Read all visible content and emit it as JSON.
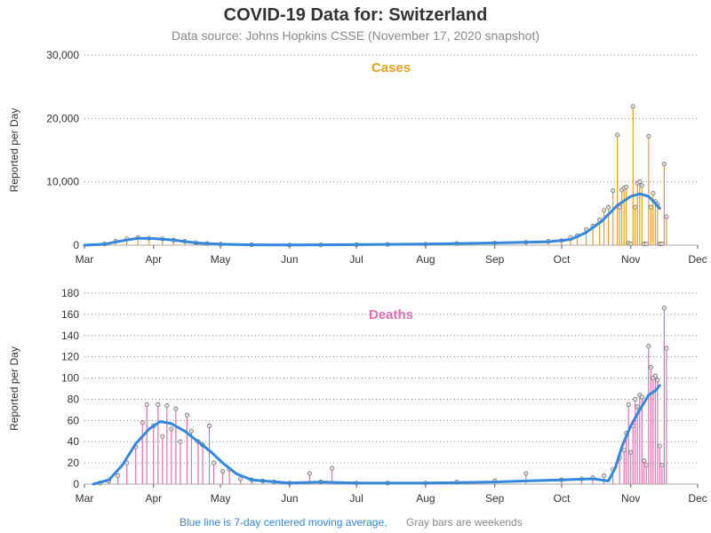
{
  "title": "COVID-19 Data for: Switzerland",
  "subtitle": "Data source: Johns Hopkins CSSE (November 17, 2020 snapshot)",
  "footnote": {
    "blue_text": "Blue line is 7-day centered moving average,",
    "gray_text": "Gray bars are weekends"
  },
  "colors": {
    "cases": "#e8a020",
    "deaths": "#e070b0",
    "average": "#3388dd",
    "weekend": "#aaaaaa",
    "grid": "#888888"
  },
  "chart_data": [
    {
      "type": "bar",
      "title": "Cases",
      "ylabel": "Reported per Day",
      "ylim": [
        0,
        30000
      ],
      "yticks": [
        "0",
        "10,000",
        "20,000",
        "30,000"
      ],
      "ytick_values": [
        0,
        10000,
        20000,
        30000
      ],
      "xtick_labels": [
        "Mar",
        "Apr",
        "May",
        "Jun",
        "Jul",
        "Aug",
        "Sep",
        "Oct",
        "Nov",
        "Dec"
      ],
      "xtick_dates": [
        "2020-03-01",
        "2020-04-01",
        "2020-05-01",
        "2020-06-01",
        "2020-07-01",
        "2020-08-01",
        "2020-09-01",
        "2020-10-01",
        "2020-11-01",
        "2020-12-01"
      ],
      "grid": "horizontal dotted",
      "series": [
        {
          "kind": "daily",
          "points": [
            [
              "2020-03-10",
              200
            ],
            [
              "2020-03-15",
              600
            ],
            [
              "2020-03-20",
              1000
            ],
            [
              "2020-03-25",
              1200
            ],
            [
              "2020-03-30",
              1100
            ],
            [
              "2020-04-05",
              1000
            ],
            [
              "2020-04-10",
              800
            ],
            [
              "2020-04-15",
              600
            ],
            [
              "2020-04-20",
              400
            ],
            [
              "2020-04-25",
              250
            ],
            [
              "2020-05-01",
              150
            ],
            [
              "2020-05-15",
              60
            ],
            [
              "2020-06-01",
              30
            ],
            [
              "2020-06-15",
              25
            ],
            [
              "2020-07-01",
              80
            ],
            [
              "2020-07-15",
              120
            ],
            [
              "2020-08-01",
              150
            ],
            [
              "2020-08-15",
              250
            ],
            [
              "2020-09-01",
              350
            ],
            [
              "2020-09-15",
              450
            ],
            [
              "2020-09-25",
              600
            ],
            [
              "2020-10-01",
              700
            ],
            [
              "2020-10-05",
              1200
            ],
            [
              "2020-10-08",
              1500
            ],
            [
              "2020-10-12",
              2500
            ],
            [
              "2020-10-15",
              3000
            ],
            [
              "2020-10-18",
              4000
            ],
            [
              "2020-10-20",
              5500
            ],
            [
              "2020-10-22",
              6000
            ],
            [
              "2020-10-24",
              8600
            ],
            [
              "2020-10-26",
              17400
            ],
            [
              "2020-10-27",
              6000
            ],
            [
              "2020-10-28",
              8700
            ],
            [
              "2020-10-29",
              9000
            ],
            [
              "2020-10-30",
              9200
            ],
            [
              "2020-10-31",
              300
            ],
            [
              "2020-11-01",
              200
            ],
            [
              "2020-11-02",
              21900
            ],
            [
              "2020-11-03",
              6000
            ],
            [
              "2020-11-04",
              9800
            ],
            [
              "2020-11-05",
              10000
            ],
            [
              "2020-11-06",
              9400
            ],
            [
              "2020-11-07",
              200
            ],
            [
              "2020-11-08",
              200
            ],
            [
              "2020-11-09",
              17200
            ],
            [
              "2020-11-10",
              6000
            ],
            [
              "2020-11-11",
              8200
            ],
            [
              "2020-11-12",
              6900
            ],
            [
              "2020-11-13",
              6500
            ],
            [
              "2020-11-14",
              200
            ],
            [
              "2020-11-15",
              200
            ],
            [
              "2020-11-16",
              12800
            ],
            [
              "2020-11-17",
              4500
            ]
          ]
        },
        {
          "kind": "7-day centered moving average",
          "points": [
            [
              "2020-03-01",
              0
            ],
            [
              "2020-03-10",
              150
            ],
            [
              "2020-03-18",
              700
            ],
            [
              "2020-03-25",
              1100
            ],
            [
              "2020-04-01",
              1050
            ],
            [
              "2020-04-10",
              800
            ],
            [
              "2020-04-20",
              350
            ],
            [
              "2020-05-01",
              150
            ],
            [
              "2020-05-15",
              50
            ],
            [
              "2020-06-01",
              25
            ],
            [
              "2020-07-01",
              80
            ],
            [
              "2020-08-01",
              180
            ],
            [
              "2020-09-01",
              350
            ],
            [
              "2020-09-25",
              550
            ],
            [
              "2020-10-05",
              900
            ],
            [
              "2020-10-12",
              2000
            ],
            [
              "2020-10-19",
              3800
            ],
            [
              "2020-10-26",
              6300
            ],
            [
              "2020-11-01",
              7700
            ],
            [
              "2020-11-05",
              8100
            ],
            [
              "2020-11-09",
              7700
            ],
            [
              "2020-11-12",
              6600
            ],
            [
              "2020-11-14",
              5800
            ]
          ]
        }
      ]
    },
    {
      "type": "bar",
      "title": "Deaths",
      "ylabel": "Reported per Day",
      "ylim": [
        0,
        180
      ],
      "yticks": [
        "0",
        "20",
        "40",
        "60",
        "80",
        "100",
        "120",
        "140",
        "160",
        "180"
      ],
      "ytick_values": [
        0,
        20,
        40,
        60,
        80,
        100,
        120,
        140,
        160,
        180
      ],
      "xtick_labels": [
        "Mar",
        "Apr",
        "May",
        "Jun",
        "Jul",
        "Aug",
        "Sep",
        "Oct",
        "Nov",
        "Dec"
      ],
      "xtick_dates": [
        "2020-03-01",
        "2020-04-01",
        "2020-05-01",
        "2020-06-01",
        "2020-07-01",
        "2020-08-01",
        "2020-09-01",
        "2020-10-01",
        "2020-11-01",
        "2020-12-01"
      ],
      "grid": "horizontal dotted",
      "series": [
        {
          "kind": "daily",
          "points": [
            [
              "2020-03-08",
              1
            ],
            [
              "2020-03-12",
              3
            ],
            [
              "2020-03-16",
              8
            ],
            [
              "2020-03-20",
              20
            ],
            [
              "2020-03-24",
              35
            ],
            [
              "2020-03-27",
              58
            ],
            [
              "2020-03-29",
              75
            ],
            [
              "2020-04-01",
              55
            ],
            [
              "2020-04-03",
              75
            ],
            [
              "2020-04-05",
              45
            ],
            [
              "2020-04-07",
              74
            ],
            [
              "2020-04-09",
              52
            ],
            [
              "2020-04-11",
              71
            ],
            [
              "2020-04-13",
              40
            ],
            [
              "2020-04-16",
              65
            ],
            [
              "2020-04-18",
              50
            ],
            [
              "2020-04-21",
              40
            ],
            [
              "2020-04-23",
              37
            ],
            [
              "2020-04-26",
              55
            ],
            [
              "2020-04-28",
              20
            ],
            [
              "2020-05-02",
              12
            ],
            [
              "2020-05-05",
              14
            ],
            [
              "2020-05-10",
              5
            ],
            [
              "2020-05-15",
              4
            ],
            [
              "2020-05-20",
              3
            ],
            [
              "2020-05-25",
              2
            ],
            [
              "2020-06-01",
              1
            ],
            [
              "2020-06-10",
              10
            ],
            [
              "2020-06-15",
              2
            ],
            [
              "2020-06-20",
              15
            ],
            [
              "2020-07-01",
              1
            ],
            [
              "2020-07-15",
              1
            ],
            [
              "2020-08-01",
              1
            ],
            [
              "2020-08-15",
              2
            ],
            [
              "2020-09-01",
              3
            ],
            [
              "2020-09-15",
              10
            ],
            [
              "2020-10-01",
              4
            ],
            [
              "2020-10-10",
              5
            ],
            [
              "2020-10-15",
              6
            ],
            [
              "2020-10-20",
              8
            ],
            [
              "2020-10-24",
              14
            ],
            [
              "2020-10-27",
              25
            ],
            [
              "2020-10-29",
              32
            ],
            [
              "2020-10-30",
              48
            ],
            [
              "2020-10-31",
              75
            ],
            [
              "2020-11-01",
              30
            ],
            [
              "2020-11-02",
              55
            ],
            [
              "2020-11-03",
              80
            ],
            [
              "2020-11-04",
              73
            ],
            [
              "2020-11-05",
              84
            ],
            [
              "2020-11-06",
              82
            ],
            [
              "2020-11-07",
              22
            ],
            [
              "2020-11-08",
              18
            ],
            [
              "2020-11-09",
              130
            ],
            [
              "2020-11-10",
              110
            ],
            [
              "2020-11-11",
              100
            ],
            [
              "2020-11-12",
              102
            ],
            [
              "2020-11-13",
              98
            ],
            [
              "2020-11-14",
              36
            ],
            [
              "2020-11-15",
              18
            ],
            [
              "2020-11-16",
              166
            ],
            [
              "2020-11-17",
              128
            ]
          ]
        },
        {
          "kind": "7-day centered moving average",
          "points": [
            [
              "2020-03-05",
              0
            ],
            [
              "2020-03-12",
              4
            ],
            [
              "2020-03-18",
              18
            ],
            [
              "2020-03-24",
              38
            ],
            [
              "2020-03-30",
              52
            ],
            [
              "2020-04-04",
              59
            ],
            [
              "2020-04-09",
              57
            ],
            [
              "2020-04-15",
              50
            ],
            [
              "2020-04-21",
              40
            ],
            [
              "2020-04-27",
              30
            ],
            [
              "2020-05-02",
              20
            ],
            [
              "2020-05-08",
              10
            ],
            [
              "2020-05-15",
              4
            ],
            [
              "2020-06-01",
              1
            ],
            [
              "2020-06-15",
              2
            ],
            [
              "2020-07-01",
              1
            ],
            [
              "2020-08-01",
              1
            ],
            [
              "2020-09-01",
              2
            ],
            [
              "2020-09-15",
              3
            ],
            [
              "2020-10-01",
              4
            ],
            [
              "2020-10-15",
              5
            ],
            [
              "2020-10-22",
              3
            ],
            [
              "2020-10-25",
              15
            ],
            [
              "2020-10-28",
              35
            ],
            [
              "2020-11-01",
              55
            ],
            [
              "2020-11-05",
              70
            ],
            [
              "2020-11-09",
              84
            ],
            [
              "2020-11-12",
              88
            ],
            [
              "2020-11-14",
              93
            ]
          ]
        }
      ]
    }
  ]
}
